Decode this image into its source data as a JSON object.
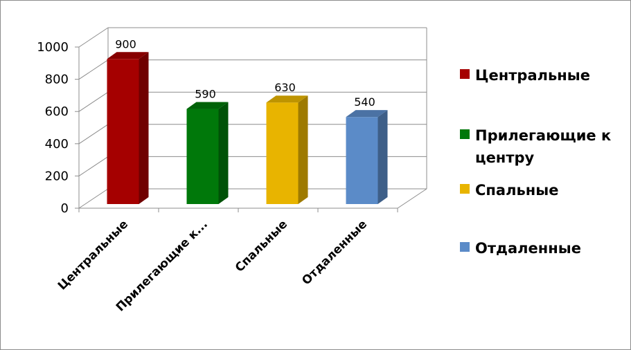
{
  "chart_data": {
    "type": "bar",
    "categories": [
      "Центральные",
      "Прилегающие к центру",
      "Спальные",
      "Отдаленные"
    ],
    "axis_category_labels": [
      "Центральные",
      "Прилегающие к...",
      "Спальные",
      "Отдаленные"
    ],
    "values": [
      900,
      590,
      630,
      540
    ],
    "data_labels": [
      "900",
      "590",
      "630",
      "540"
    ],
    "colors": [
      "#a50000",
      "#00780a",
      "#e8b400",
      "#5b8bc8"
    ],
    "y_ticks": [
      "0",
      "200",
      "400",
      "600",
      "800",
      "1000"
    ],
    "ylim": [
      0,
      1000
    ],
    "grid": true,
    "legend_position": "right",
    "title": "",
    "xlabel": "",
    "ylabel": ""
  },
  "legend": {
    "items": [
      {
        "label": "Центральные",
        "color": "#a50000"
      },
      {
        "label": "Прилегающие к центру",
        "color": "#00780a"
      },
      {
        "label": "Спальные",
        "color": "#e8b400"
      },
      {
        "label": "Отдаленные",
        "color": "#5b8bc8"
      }
    ]
  }
}
